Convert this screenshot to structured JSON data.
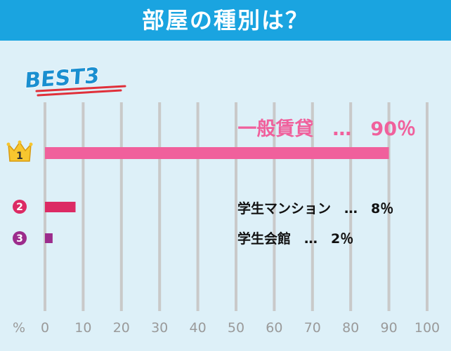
{
  "header": {
    "title": "部屋の種別は？"
  },
  "badge": {
    "text": "BEST3"
  },
  "colors": {
    "header_bg": "#1aa4e0",
    "panel_bg": "#ddf0f8",
    "grid": "#c9c9c9",
    "rank1": "#f0609c",
    "rank2": "#dc2a64",
    "rank3": "#9c2c8c"
  },
  "chart_data": {
    "type": "bar",
    "orientation": "horizontal",
    "xlim": [
      0,
      100
    ],
    "xticks": [
      "0",
      "10",
      "20",
      "30",
      "40",
      "50",
      "60",
      "70",
      "80",
      "90",
      "100"
    ],
    "xunit": "%",
    "bars": [
      {
        "rank": "1",
        "label": "一般賃貸",
        "value": 90,
        "display": "一般賃貸　…　90％",
        "color": "#f0609c",
        "icon": "crown-icon"
      },
      {
        "rank": "2",
        "label": "学生マンション",
        "value": 8,
        "display": "学生マンション　…　8％",
        "color": "#dc2a64",
        "icon": "circled-number-icon"
      },
      {
        "rank": "3",
        "label": "学生会館",
        "value": 2,
        "display": "学生会館　…　2％",
        "color": "#9c2c8c",
        "icon": "circled-number-icon"
      }
    ]
  }
}
